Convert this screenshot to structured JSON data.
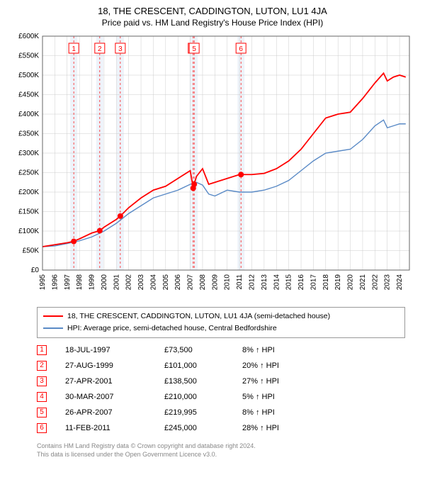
{
  "title": "18, THE CRESCENT, CADDINGTON, LUTON, LU1 4JA",
  "subtitle": "Price paid vs. HM Land Registry's House Price Index (HPI)",
  "chart": {
    "type": "line",
    "background_color": "#ffffff",
    "grid_color": "#cccccc",
    "axis_color": "#666666",
    "label_fontsize": 10,
    "ylabel_prefix": "£",
    "ylim": [
      0,
      600
    ],
    "ytick_step": 50,
    "yticks": [
      "£0",
      "£50K",
      "£100K",
      "£150K",
      "£200K",
      "£250K",
      "£300K",
      "£350K",
      "£400K",
      "£450K",
      "£500K",
      "£550K",
      "£600K"
    ],
    "xlim": [
      1995,
      2024.8
    ],
    "xticks": [
      1995,
      1996,
      1997,
      1998,
      1999,
      2000,
      2001,
      2002,
      2003,
      2004,
      2005,
      2006,
      2007,
      2008,
      2009,
      2010,
      2011,
      2012,
      2013,
      2014,
      2015,
      2016,
      2017,
      2018,
      2019,
      2020,
      2021,
      2022,
      2023,
      2024
    ],
    "vertical_band_color": "#eef3fa",
    "vertical_line_color": "#f00",
    "vertical_line_dash": "3,3",
    "marker_style": "circle",
    "marker_size": 4,
    "series": [
      {
        "name": "property",
        "color": "#ff0000",
        "line_width": 1.8,
        "data": [
          [
            1995,
            60
          ],
          [
            1996,
            65
          ],
          [
            1997,
            70
          ],
          [
            1997.5,
            73.5
          ],
          [
            1998,
            80
          ],
          [
            1999,
            95
          ],
          [
            1999.65,
            101
          ],
          [
            2000,
            110
          ],
          [
            2001,
            130
          ],
          [
            2001.32,
            138.5
          ],
          [
            2002,
            160
          ],
          [
            2003,
            185
          ],
          [
            2004,
            205
          ],
          [
            2005,
            215
          ],
          [
            2006,
            235
          ],
          [
            2007,
            255
          ],
          [
            2007.24,
            210
          ],
          [
            2007.32,
            219.995
          ],
          [
            2007.5,
            240
          ],
          [
            2008,
            260
          ],
          [
            2008.5,
            220
          ],
          [
            2009,
            225
          ],
          [
            2010,
            235
          ],
          [
            2011,
            245
          ],
          [
            2011.12,
            245
          ],
          [
            2012,
            245
          ],
          [
            2013,
            248
          ],
          [
            2014,
            260
          ],
          [
            2015,
            280
          ],
          [
            2016,
            310
          ],
          [
            2017,
            350
          ],
          [
            2018,
            390
          ],
          [
            2019,
            400
          ],
          [
            2020,
            405
          ],
          [
            2021,
            440
          ],
          [
            2022,
            480
          ],
          [
            2022.7,
            505
          ],
          [
            2023,
            485
          ],
          [
            2023.5,
            495
          ],
          [
            2024,
            500
          ],
          [
            2024.5,
            495
          ]
        ]
      },
      {
        "name": "hpi",
        "color": "#5a8ac6",
        "line_width": 1.4,
        "data": [
          [
            1995,
            60
          ],
          [
            1996,
            62
          ],
          [
            1997,
            68
          ],
          [
            1998,
            75
          ],
          [
            1999,
            85
          ],
          [
            2000,
            100
          ],
          [
            2001,
            120
          ],
          [
            2002,
            145
          ],
          [
            2003,
            165
          ],
          [
            2004,
            185
          ],
          [
            2005,
            195
          ],
          [
            2006,
            205
          ],
          [
            2007,
            220
          ],
          [
            2007.5,
            225
          ],
          [
            2008,
            218
          ],
          [
            2008.5,
            195
          ],
          [
            2009,
            190
          ],
          [
            2010,
            205
          ],
          [
            2011,
            200
          ],
          [
            2012,
            200
          ],
          [
            2013,
            205
          ],
          [
            2014,
            215
          ],
          [
            2015,
            230
          ],
          [
            2016,
            255
          ],
          [
            2017,
            280
          ],
          [
            2018,
            300
          ],
          [
            2019,
            305
          ],
          [
            2020,
            310
          ],
          [
            2021,
            335
          ],
          [
            2022,
            370
          ],
          [
            2022.7,
            385
          ],
          [
            2023,
            365
          ],
          [
            2023.5,
            370
          ],
          [
            2024,
            375
          ],
          [
            2024.5,
            375
          ]
        ]
      }
    ],
    "transaction_markers": [
      {
        "num": "1",
        "x": 1997.54,
        "y": 73.5
      },
      {
        "num": "2",
        "x": 1999.65,
        "y": 101
      },
      {
        "num": "3",
        "x": 2001.32,
        "y": 138.5
      },
      {
        "num": "4",
        "x": 2007.24,
        "y": 210
      },
      {
        "num": "5",
        "x": 2007.32,
        "y": 219.995
      },
      {
        "num": "6",
        "x": 2011.12,
        "y": 245
      }
    ]
  },
  "legend": {
    "series1": "18, THE CRESCENT, CADDINGTON, LUTON, LU1 4JA (semi-detached house)",
    "series2": "HPI: Average price, semi-detached house, Central Bedfordshire"
  },
  "transactions": [
    {
      "num": "1",
      "date": "18-JUL-1997",
      "price": "£73,500",
      "pct": "8% ↑ HPI"
    },
    {
      "num": "2",
      "date": "27-AUG-1999",
      "price": "£101,000",
      "pct": "20% ↑ HPI"
    },
    {
      "num": "3",
      "date": "27-APR-2001",
      "price": "£138,500",
      "pct": "27% ↑ HPI"
    },
    {
      "num": "4",
      "date": "30-MAR-2007",
      "price": "£210,000",
      "pct": "5% ↑ HPI"
    },
    {
      "num": "5",
      "date": "26-APR-2007",
      "price": "£219,995",
      "pct": "8% ↑ HPI"
    },
    {
      "num": "6",
      "date": "11-FEB-2011",
      "price": "£245,000",
      "pct": "28% ↑ HPI"
    }
  ],
  "footnote_line1": "Contains HM Land Registry data © Crown copyright and database right 2024.",
  "footnote_line2": "This data is licensed under the Open Government Licence v3.0."
}
